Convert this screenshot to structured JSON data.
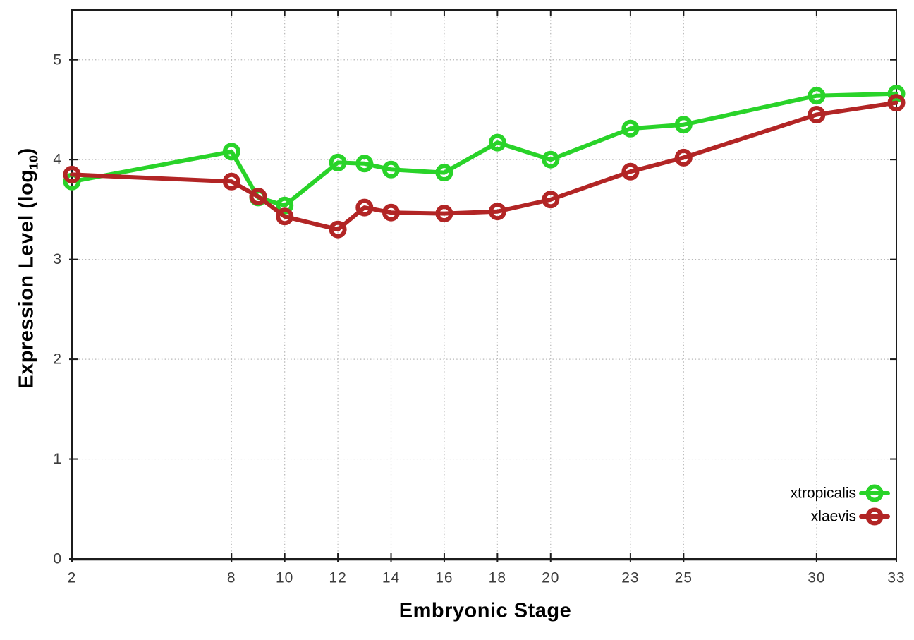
{
  "figure": {
    "background": "#ffffff",
    "axis_color": "#1c1c1c",
    "grid_color": "#b7b7b7",
    "tick_label_color": "#3c3c3c"
  },
  "labels": {
    "xlabel": "Embryonic Stage",
    "ylabel_prefix": "Expression Level (log",
    "ylabel_sub": "10",
    "ylabel_suffix": ")"
  },
  "legend": {
    "items": [
      "xtropicalis",
      "xlaevis"
    ],
    "position": "inside-lower-right",
    "marker": "open-circle"
  },
  "chart_data": {
    "type": "line",
    "title": "",
    "xlabel": "Embryonic Stage",
    "ylabel": "Expression Level (log10)",
    "xlim": [
      2,
      33
    ],
    "ylim": [
      0,
      5.5
    ],
    "xticks": [
      2,
      8,
      10,
      12,
      14,
      16,
      18,
      20,
      23,
      25,
      30,
      33
    ],
    "yticks": [
      0,
      1,
      2,
      3,
      4,
      5
    ],
    "grid": true,
    "legend_position": "inside-lower-right",
    "x": [
      2,
      8,
      9,
      10,
      12,
      13,
      14,
      16,
      18,
      20,
      23,
      25,
      30,
      33
    ],
    "series": [
      {
        "name": "xtropicalis",
        "color": "#29d329",
        "marker": "open-circle",
        "values": [
          3.78,
          4.08,
          3.62,
          3.54,
          3.97,
          3.96,
          3.9,
          3.87,
          4.17,
          4.0,
          4.31,
          4.35,
          4.64,
          4.66
        ]
      },
      {
        "name": "xlaevis",
        "color": "#b22525",
        "marker": "open-circle",
        "values": [
          3.85,
          3.78,
          3.63,
          3.43,
          3.3,
          3.52,
          3.47,
          3.46,
          3.48,
          3.6,
          3.88,
          4.02,
          4.45,
          4.57
        ]
      }
    ]
  }
}
